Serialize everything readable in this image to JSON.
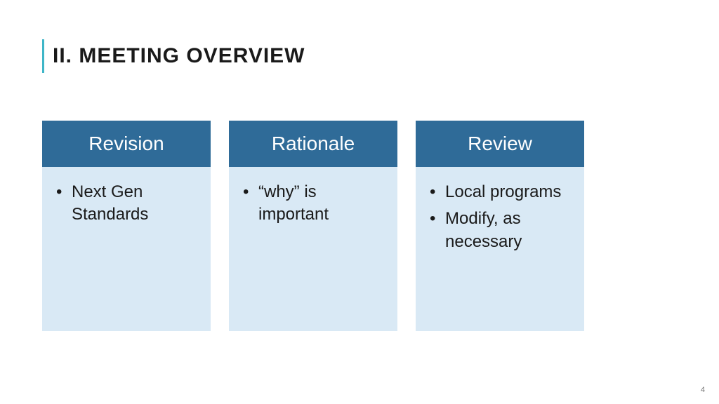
{
  "title": "II. MEETING OVERVIEW",
  "accent_color": "#3fb6c8",
  "title_color": "#1a1a1a",
  "header_bg": "#2f6b98",
  "header_text_color": "#ffffff",
  "body_bg": "#d9e9f5",
  "body_text_color": "#1a1a1a",
  "page_number": "4",
  "columns": [
    {
      "header": "Revision",
      "bullets": [
        "Next Gen Standards"
      ]
    },
    {
      "header": "Rationale",
      "bullets": [
        "“why” is important"
      ]
    },
    {
      "header": "Review",
      "bullets": [
        "Local programs",
        "Modify, as necessary"
      ]
    }
  ]
}
